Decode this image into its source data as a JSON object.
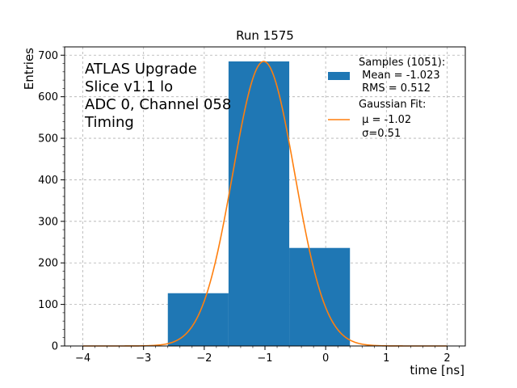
{
  "chart_data": {
    "type": "bar",
    "title": "Run 1575",
    "xlabel": "time [ns]",
    "ylabel": "Entries",
    "xlim": [
      -4.3,
      2.3
    ],
    "ylim": [
      0,
      720
    ],
    "xticks": [
      -4,
      -3,
      -2,
      -1,
      0,
      1,
      2
    ],
    "xtick_labels": [
      "−4",
      "−3",
      "−2",
      "−1",
      "0",
      "1",
      "2"
    ],
    "yticks": [
      0,
      100,
      200,
      300,
      400,
      500,
      600,
      700
    ],
    "ytick_labels": [
      "0",
      "100",
      "200",
      "300",
      "400",
      "500",
      "600",
      "700"
    ],
    "grid": true,
    "legend_position": "top-right",
    "annotation_lines": [
      "ATLAS Upgrade",
      "Slice v1.1 lo",
      "ADC 0, Channel 058",
      "Timing"
    ],
    "histogram": {
      "color": "#1f77b4",
      "legend_lines": [
        "Samples (1051):",
        " Mean = -1.023",
        " RMS = 0.512"
      ],
      "bins": [
        {
          "x0": -2.6,
          "x1": -1.6,
          "count": 127
        },
        {
          "x0": -1.6,
          "x1": -0.6,
          "count": 685
        },
        {
          "x0": -0.6,
          "x1": 0.4,
          "count": 236
        }
      ]
    },
    "fit": {
      "type": "gaussian",
      "color": "#ff7f0e",
      "legend_lines": [
        "Gaussian Fit:",
        " μ = -1.02",
        " σ=0.51"
      ],
      "mu": -1.02,
      "sigma": 0.51,
      "amplitude": 685,
      "x_range": [
        -4,
        2
      ]
    }
  }
}
